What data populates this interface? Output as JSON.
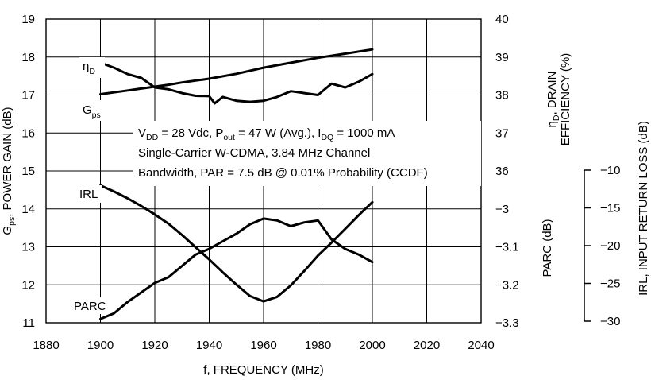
{
  "chart_data": {
    "type": "line",
    "xlabel": "f, FREQUENCY (MHz)",
    "x_ticks": [
      "1880",
      "1900",
      "1920",
      "1940",
      "1960",
      "1980",
      "2000",
      "2020",
      "2040"
    ],
    "xlim": [
      1880,
      2040
    ],
    "grid": true,
    "axes": {
      "gps": {
        "label_main": "G",
        "label_sub": "ps",
        "label_rest": ", POWER GAIN (dB)",
        "range": [
          11,
          19
        ],
        "ticks": [
          "11",
          "12",
          "13",
          "14",
          "15",
          "16",
          "17",
          "18",
          "19"
        ]
      },
      "eff": {
        "label_line1_main": "η",
        "label_line1_sub": "D",
        "label_line1_rest": ", DRAIN",
        "label_line2": "EFFICIENCY (%)",
        "range": [
          36,
          40
        ],
        "ticks": [
          "36",
          "37",
          "38",
          "39",
          "40"
        ]
      },
      "parc": {
        "label": "PARC (dB)",
        "range": [
          -3.3,
          -3
        ],
        "ticks": [
          "−3",
          "−3.1",
          "−3.2",
          "−3.3"
        ]
      },
      "irl": {
        "label": "IRL, INPUT RETURN LOSS (dB)",
        "range": [
          -30,
          -10
        ],
        "ticks": [
          "−10",
          "−15",
          "−20",
          "−25",
          "−30"
        ]
      }
    },
    "conditions": {
      "line1": {
        "a": "V",
        "a_sub": "DD",
        "b": " = 28 Vdc, P",
        "b_sub": "out",
        "c": " = 47 W (Avg.), I",
        "c_sub": "DQ",
        "d": " = 1000 mA"
      },
      "line2": "Single-Carrier W-CDMA, 3.84 MHz Channel",
      "line3": "Bandwidth, PAR = 7.5 dB @ 0.01% Probability (CCDF)"
    },
    "curve_labels": {
      "eff": {
        "main": "η",
        "sub": "D"
      },
      "gps": {
        "main": "G",
        "sub": "ps"
      },
      "irl": "IRL",
      "parc": "PARC"
    },
    "series": [
      {
        "name": "ηD",
        "axis": "eff",
        "x": [
          1900,
          1905,
          1910,
          1915,
          1920,
          1925,
          1930,
          1940,
          1950,
          1960,
          1970,
          1980,
          1990,
          2000
        ],
        "y": [
          38.02,
          38.07,
          38.12,
          38.17,
          38.22,
          38.27,
          38.33,
          38.43,
          38.56,
          38.72,
          38.85,
          38.98,
          39.09,
          39.2
        ]
      },
      {
        "name": "Gps",
        "axis": "gps",
        "x": [
          1900,
          1905,
          1910,
          1915,
          1920,
          1925,
          1930,
          1935,
          1940,
          1942,
          1945,
          1950,
          1955,
          1960,
          1965,
          1970,
          1975,
          1980,
          1985,
          1990,
          1995,
          2000
        ],
        "y": [
          17.85,
          17.72,
          17.55,
          17.45,
          17.2,
          17.15,
          17.05,
          16.98,
          16.97,
          16.78,
          16.95,
          16.85,
          16.82,
          16.85,
          16.95,
          17.1,
          17.05,
          17.0,
          17.3,
          17.2,
          17.35,
          17.55
        ]
      },
      {
        "name": "IRL",
        "axis": "irl",
        "x": [
          1900,
          1905,
          1910,
          1915,
          1920,
          1925,
          1930,
          1935,
          1940,
          1945,
          1950,
          1955,
          1960,
          1965,
          1970,
          1975,
          1980,
          1985,
          1990,
          1995,
          2000
        ],
        "y": [
          -12.0,
          -12.8,
          -13.7,
          -14.7,
          -15.8,
          -17.0,
          -18.5,
          -20.1,
          -21.7,
          -23.4,
          -25.0,
          -26.5,
          -27.2,
          -26.6,
          -25.1,
          -23.2,
          -21.2,
          -19.5,
          -17.7,
          -15.9,
          -14.2
        ]
      },
      {
        "name": "PARC",
        "axis": "parc",
        "x": [
          1900,
          1905,
          1910,
          1915,
          1920,
          1925,
          1930,
          1935,
          1940,
          1945,
          1950,
          1955,
          1960,
          1965,
          1970,
          1975,
          1980,
          1982,
          1985,
          1990,
          1995,
          2000
        ],
        "y": [
          -3.29,
          -3.275,
          -3.245,
          -3.22,
          -3.195,
          -3.18,
          -3.15,
          -3.12,
          -3.105,
          -3.085,
          -3.065,
          -3.04,
          -3.025,
          -3.03,
          -3.045,
          -3.035,
          -3.03,
          -3.05,
          -3.08,
          -3.105,
          -3.12,
          -3.14
        ]
      }
    ]
  }
}
